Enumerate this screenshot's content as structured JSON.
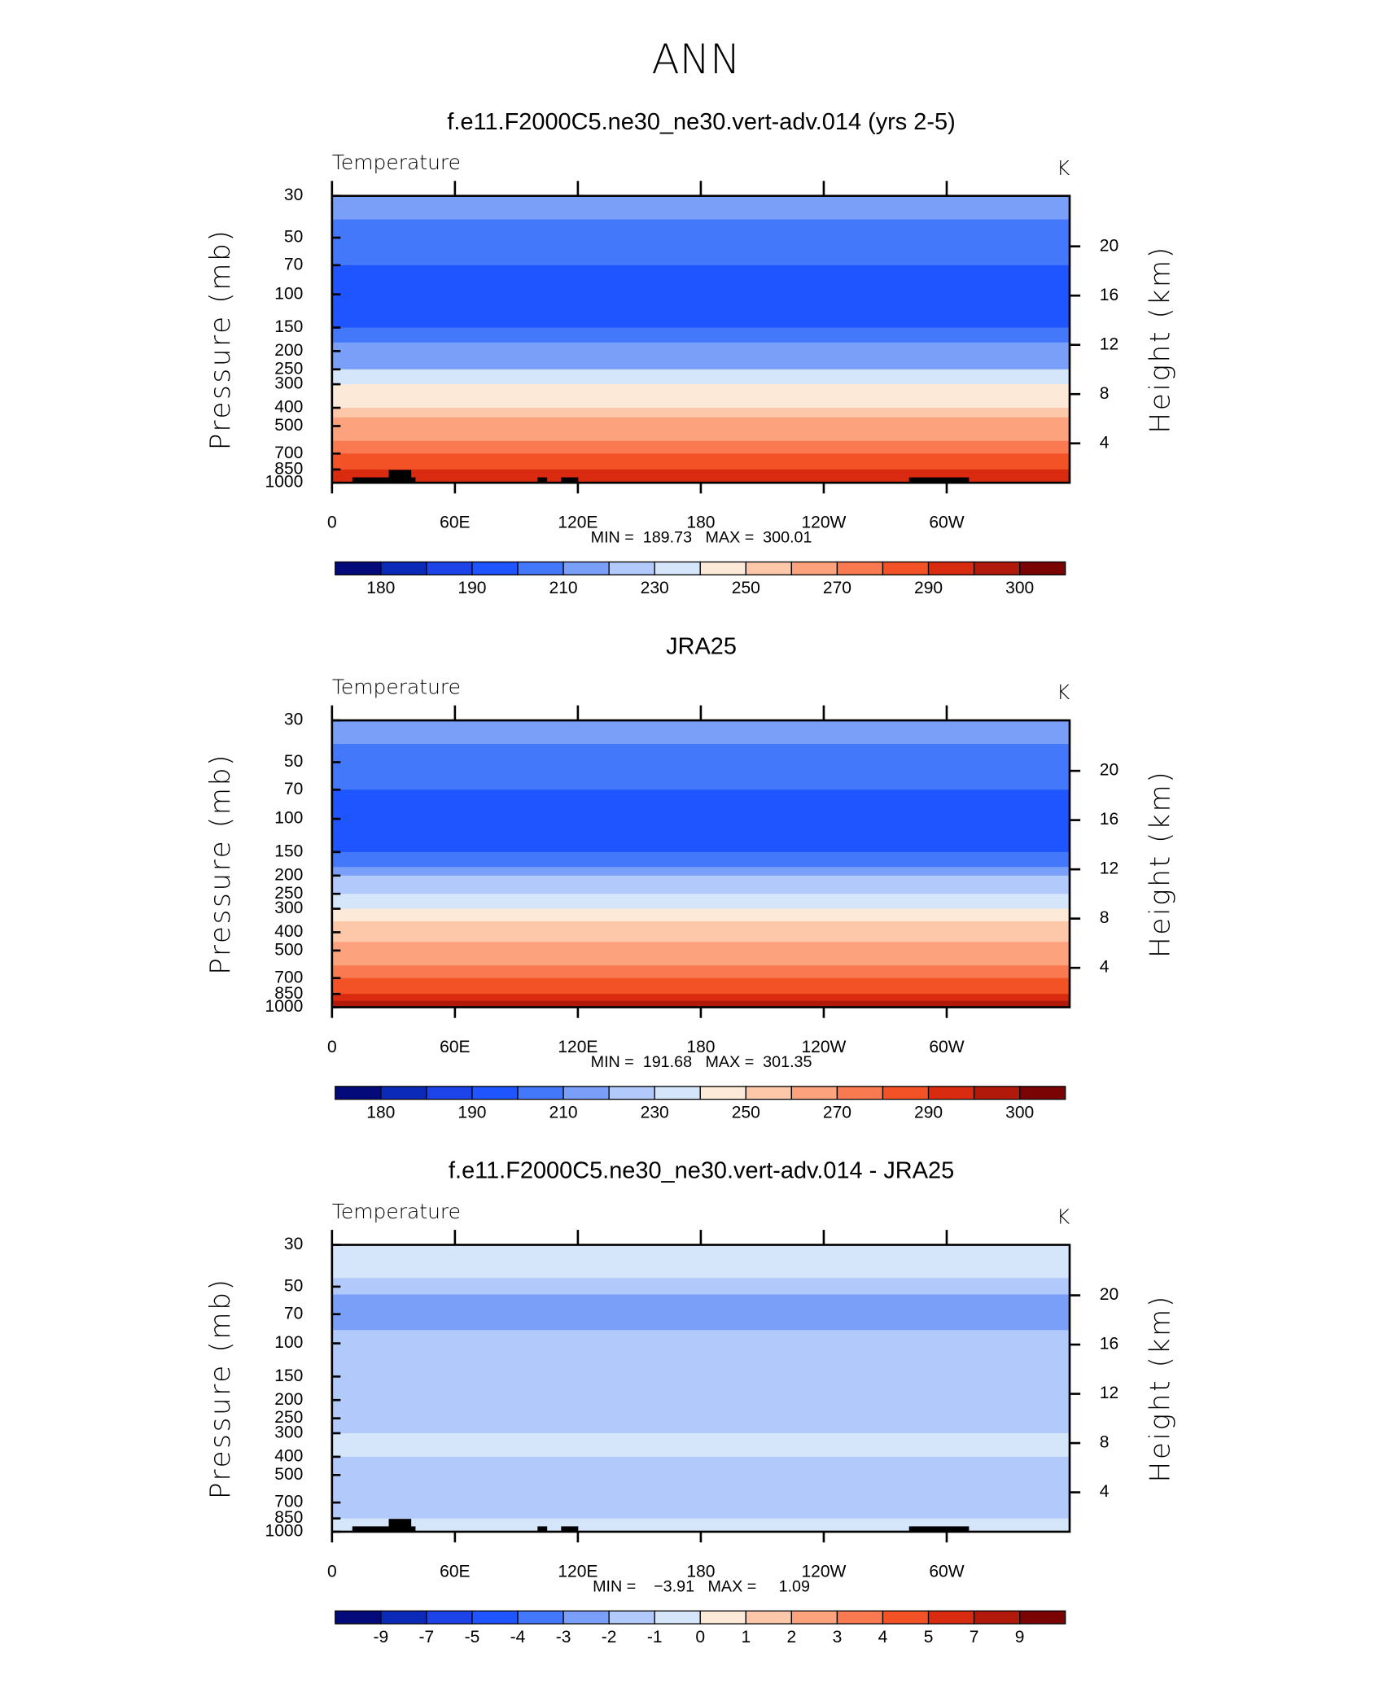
{
  "title": "ANN",
  "chart_data": [
    {
      "type": "contour",
      "title": "f.e11.F2000C5.ne30_ne30.vert-adv.014 (yrs 2-5)",
      "left_label": "Temperature",
      "units": "K",
      "ylabel": "Pressure (mb)",
      "y2label": "Height (km)",
      "ylog": true,
      "ylim": [
        1000,
        30
      ],
      "yticks": [
        30,
        50,
        70,
        100,
        150,
        200,
        250,
        300,
        400,
        500,
        700,
        850,
        1000
      ],
      "y2lim": [
        0.8,
        24.1
      ],
      "y2ticks": [
        4,
        8,
        12,
        16,
        20
      ],
      "xlim": [
        0,
        360
      ],
      "xticks": [
        0,
        {
          "value": 60,
          "label": "60E"
        },
        {
          "value": 120,
          "label": "120E"
        },
        180,
        {
          "value": 240,
          "label": "120W"
        },
        {
          "value": 300,
          "label": "60W"
        }
      ],
      "stats": "MIN =  189.73   MAX =  300.01",
      "p": [
        30,
        40,
        50,
        60,
        70,
        85,
        100,
        120,
        150,
        180,
        200,
        250,
        300,
        350,
        400,
        450,
        500,
        600,
        700,
        800,
        850,
        925,
        1000
      ],
      "values": [
        213,
        211,
        206,
        203,
        199,
        197,
        196,
        197,
        201,
        206,
        214,
        225,
        236,
        245,
        253,
        258,
        264,
        272,
        278,
        285,
        288,
        292,
        296
      ],
      "levels": [
        180,
        185,
        190,
        200,
        210,
        220,
        230,
        240,
        250,
        260,
        270,
        280,
        290,
        295,
        300
      ],
      "cbticks": [
        180,
        190,
        210,
        230,
        250,
        270,
        290,
        300
      ],
      "colors": [
        "#050a7a",
        "#0c2ab8",
        "#1d44e8",
        "#1e55ff",
        "#4478fb",
        "#7a9ff8",
        "#b1c9fb",
        "#d5e6fb",
        "#fde9d7",
        "#fdc7aa",
        "#fca27d",
        "#f97a50",
        "#f35226",
        "#d92b10",
        "#b1190a",
        "#7a0404"
      ]
    },
    {
      "type": "contour",
      "title": "JRA25",
      "left_label": "Temperature",
      "units": "K",
      "ylabel": "Pressure (mb)",
      "y2label": "Height (km)",
      "ylog": true,
      "ylim": [
        1000,
        30
      ],
      "yticks": [
        30,
        50,
        70,
        100,
        150,
        200,
        250,
        300,
        400,
        500,
        700,
        850,
        1000
      ],
      "y2lim": [
        0.8,
        24.1
      ],
      "y2ticks": [
        4,
        8,
        12,
        16,
        20
      ],
      "xlim": [
        0,
        360
      ],
      "xticks": [
        0,
        {
          "value": 60,
          "label": "60E"
        },
        {
          "value": 120,
          "label": "120E"
        },
        180,
        {
          "value": 240,
          "label": "120W"
        },
        {
          "value": 300,
          "label": "60W"
        }
      ],
      "stats": "MIN =  191.68   MAX =  301.35",
      "p": [
        30,
        40,
        50,
        60,
        70,
        85,
        100,
        120,
        150,
        180,
        200,
        250,
        300,
        350,
        400,
        450,
        500,
        600,
        700,
        800,
        850,
        925,
        1000
      ],
      "values": [
        213,
        211,
        206,
        203,
        199,
        197,
        196,
        197,
        201,
        207,
        215,
        227,
        238,
        246,
        254,
        259,
        265,
        273,
        279,
        286,
        289,
        293,
        297
      ],
      "levels": [
        180,
        185,
        190,
        200,
        210,
        220,
        230,
        240,
        250,
        260,
        270,
        280,
        290,
        295,
        300
      ],
      "cbticks": [
        180,
        190,
        210,
        230,
        250,
        270,
        290,
        300
      ],
      "colors": [
        "#050a7a",
        "#0c2ab8",
        "#1d44e8",
        "#1e55ff",
        "#4478fb",
        "#7a9ff8",
        "#b1c9fb",
        "#d5e6fb",
        "#fde9d7",
        "#fdc7aa",
        "#fca27d",
        "#f97a50",
        "#f35226",
        "#d92b10",
        "#b1190a",
        "#7a0404"
      ]
    },
    {
      "type": "contour",
      "title": "f.e11.F2000C5.ne30_ne30.vert-adv.014 - JRA25",
      "left_label": "Temperature",
      "units": "K",
      "ylabel": "Pressure (mb)",
      "y2label": "Height (km)",
      "ylog": true,
      "ylim": [
        1000,
        30
      ],
      "yticks": [
        30,
        50,
        70,
        100,
        150,
        200,
        250,
        300,
        400,
        500,
        700,
        850,
        1000
      ],
      "y2lim": [
        0.8,
        24.1
      ],
      "y2ticks": [
        4,
        8,
        12,
        16,
        20
      ],
      "xlim": [
        0,
        360
      ],
      "xticks": [
        0,
        {
          "value": 60,
          "label": "60E"
        },
        {
          "value": 120,
          "label": "120E"
        },
        180,
        {
          "value": 240,
          "label": "120W"
        },
        {
          "value": 300,
          "label": "60W"
        }
      ],
      "stats": "MIN =    −3.91   MAX =     1.09",
      "p": [
        30,
        35,
        45,
        55,
        65,
        75,
        85,
        100,
        150,
        200,
        250,
        300,
        400,
        500,
        600,
        700,
        850,
        925,
        1000
      ],
      "values": [
        0.3,
        -0.5,
        -1.5,
        -2.5,
        -3.3,
        -2.6,
        -1.8,
        -1.5,
        -1.5,
        -1.5,
        -1.2,
        -0.9,
        -0.9,
        -1.2,
        -1.4,
        -0.9,
        -1.3,
        -0.5,
        0.2
      ],
      "levels": [
        -9,
        -7,
        -5,
        -4,
        -3,
        -2,
        -1,
        0,
        1,
        2,
        3,
        4,
        5,
        7,
        9
      ],
      "cbticks": [
        -9,
        -7,
        -5,
        -4,
        -3,
        -2,
        -1,
        0,
        1,
        2,
        3,
        4,
        5,
        7,
        9
      ],
      "colors": [
        "#050a7a",
        "#0c2ab8",
        "#1d44e8",
        "#1e55ff",
        "#4478fb",
        "#7a9ff8",
        "#b1c9fb",
        "#d5e6fb",
        "#fde9d7",
        "#fdc7aa",
        "#fca27d",
        "#f97a50",
        "#f35226",
        "#d92b10",
        "#b1190a",
        "#7a0404"
      ]
    }
  ]
}
